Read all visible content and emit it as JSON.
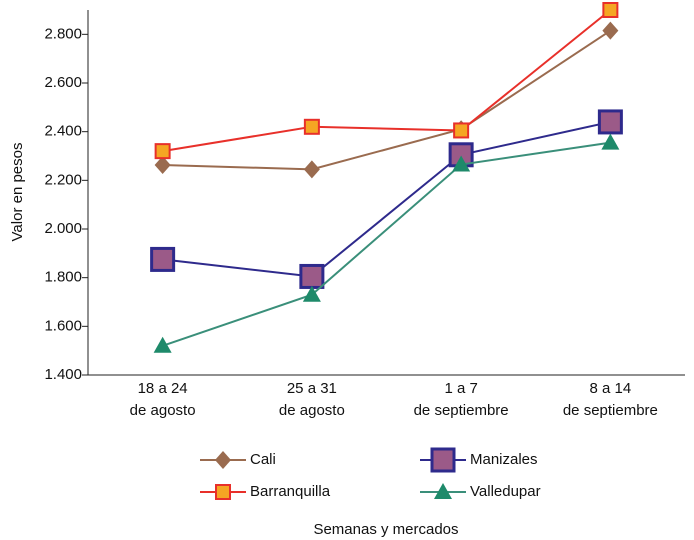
{
  "chart_data": {
    "type": "line",
    "xlabel": "Semanas y mercados",
    "ylabel": "Valor en pesos",
    "categories": [
      "18 a 24\nde agosto",
      "25 a 31\nde agosto",
      "1 a 7\nde septiembre",
      "8 a 14\nde septiembre"
    ],
    "series": [
      {
        "name": "Cali",
        "color": "#9a6b4f",
        "marker": "diamond",
        "marker_fill": "#9a6b4f",
        "values": [
          2263,
          2245,
          2410,
          2815
        ]
      },
      {
        "name": "Manizales",
        "color": "#2e2a8c",
        "marker": "square",
        "marker_fill": "#9b5a88",
        "values": [
          1875,
          1805,
          2305,
          2440
        ]
      },
      {
        "name": "Barranquilla",
        "color": "#e8302a",
        "marker": "small-square",
        "marker_fill": "#f5a623",
        "values": [
          2320,
          2420,
          2405,
          2900
        ]
      },
      {
        "name": "Valledupar",
        "color": "#3a8f7a",
        "marker": "triangle",
        "marker_fill": "#1e8a6a",
        "values": [
          1520,
          1730,
          2265,
          2355
        ]
      }
    ],
    "ylim": [
      1400,
      2900
    ],
    "yticks": [
      {
        "value": 1400,
        "label": "1.400"
      },
      {
        "value": 1600,
        "label": "1.600"
      },
      {
        "value": 1800,
        "label": "1.800"
      },
      {
        "value": 2000,
        "label": "2.000"
      },
      {
        "value": 2200,
        "label": "2.200"
      },
      {
        "value": 2400,
        "label": "2.400"
      },
      {
        "value": 2600,
        "label": "2.600"
      },
      {
        "value": 2800,
        "label": "2.800"
      }
    ],
    "grid": false
  }
}
